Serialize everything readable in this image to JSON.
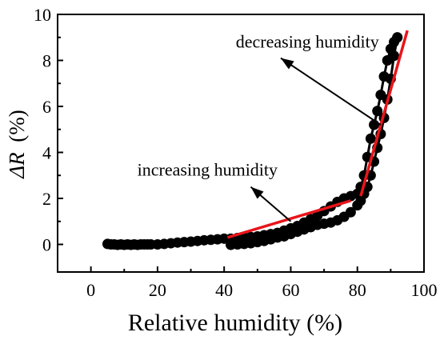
{
  "chart_data": {
    "type": "scatter",
    "xlabel": "Relative humidity (%)",
    "ylabel_symbol": "ΔR",
    "ylabel_unit": "(%)",
    "xlim": [
      -10,
      100
    ],
    "ylim": [
      -1.2,
      10
    ],
    "xticks": [
      0,
      20,
      40,
      60,
      80,
      100
    ],
    "yticks": [
      0,
      2,
      4,
      6,
      8,
      10
    ],
    "grid": false,
    "legend": "none",
    "series": [
      {
        "color": "#000000",
        "marker": "circle",
        "x": [
          5,
          6,
          7,
          8,
          9,
          10,
          11,
          12,
          13,
          14,
          15,
          16,
          17,
          18,
          20,
          22,
          24,
          26,
          28,
          30,
          32,
          34,
          36,
          38,
          40,
          42,
          44,
          46,
          48,
          50,
          52,
          54,
          56,
          58,
          60,
          62,
          64,
          66,
          68,
          70,
          72,
          74,
          76,
          78,
          80,
          81,
          82,
          83,
          84,
          85,
          86,
          87,
          88,
          89,
          90,
          91,
          92,
          92,
          91,
          90,
          89,
          88,
          87,
          86,
          85,
          84,
          83,
          82,
          81,
          80,
          78,
          76,
          74,
          72,
          70,
          68,
          66,
          64,
          62,
          60,
          58,
          56,
          54,
          52,
          50,
          48,
          46,
          44,
          42
        ],
        "y": [
          0.02,
          0.0,
          0.0,
          -0.02,
          0.0,
          -0.02,
          0.0,
          -0.02,
          0.0,
          -0.02,
          0.0,
          0.0,
          0.0,
          0.0,
          0.0,
          0.02,
          0.05,
          0.08,
          0.1,
          0.12,
          0.15,
          0.18,
          0.2,
          0.22,
          0.25,
          0.25,
          0.28,
          0.3,
          0.32,
          0.35,
          0.4,
          0.45,
          0.5,
          0.6,
          0.7,
          0.8,
          0.95,
          1.1,
          1.25,
          1.45,
          1.65,
          1.85,
          2.0,
          2.1,
          2.2,
          2.5,
          3.0,
          3.8,
          4.6,
          5.2,
          5.8,
          6.5,
          7.3,
          8.0,
          8.5,
          8.8,
          9.0,
          9.0,
          8.2,
          7.2,
          6.3,
          5.5,
          4.8,
          4.2,
          3.6,
          3.0,
          2.5,
          2.2,
          1.9,
          1.7,
          1.4,
          1.2,
          1.05,
          0.95,
          0.9,
          0.85,
          0.75,
          0.65,
          0.55,
          0.45,
          0.35,
          0.3,
          0.22,
          0.15,
          0.1,
          0.05,
          0.02,
          0.0,
          -0.02
        ]
      }
    ],
    "fits": [
      {
        "color": "#e8141b",
        "x": [
          41,
          78
        ],
        "y": [
          0.3,
          1.9
        ]
      },
      {
        "color": "#e8141b",
        "x": [
          81,
          95
        ],
        "y": [
          2.1,
          9.3
        ]
      }
    ],
    "annotations": [
      {
        "text": "decreasing humidity",
        "text_x": 65,
        "text_y": 8.55,
        "arrow_from": [
          78,
          7.0
        ],
        "arrow_to": [
          57,
          8.1
        ],
        "arrow_start": [
          87,
          5.2
        ]
      },
      {
        "text": "increasing humidity",
        "text_x": 35,
        "text_y": 3.0,
        "arrow_start": [
          60,
          1.0
        ],
        "arrow_to": [
          48,
          2.5
        ]
      }
    ]
  }
}
